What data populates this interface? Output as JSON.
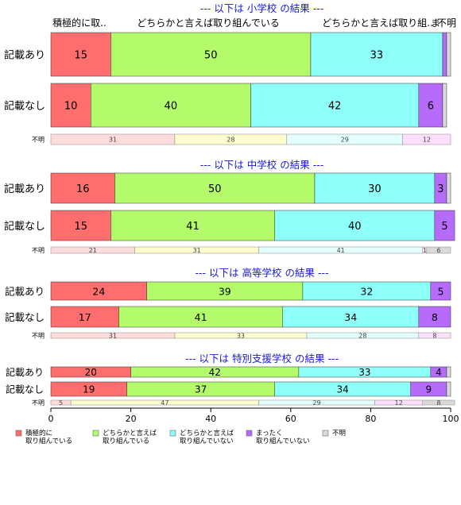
{
  "chart_data": {
    "type": "bar",
    "orientation": "horizontal-stacked-percent",
    "xlim": [
      0,
      100
    ],
    "x_ticks": [
      "0",
      "20",
      "40",
      "60",
      "80",
      "100"
    ],
    "top_category_labels": [
      "積極的に取..",
      "どちらかと言えば取り組んでいる",
      "どちらかと言えば取り組..",
      "ま",
      "不明"
    ],
    "legend": {
      "position": "bottom",
      "entries": [
        {
          "line1": "積極的に",
          "line2": "取り組んでいる",
          "color": "#ff6e6e"
        },
        {
          "line1": "どちらかと言えば",
          "line2": "取り組んでいる",
          "color": "#b4fb6b"
        },
        {
          "line1": "どちらかと言えば",
          "line2": "取り組んでいない",
          "color": "#8ffff9"
        },
        {
          "line1": "まったく",
          "line2": "取り組んでいない",
          "color": "#b66bfb"
        },
        {
          "line1": "不明",
          "line2": "",
          "color": "#d9d9d9"
        }
      ]
    },
    "panels": [
      {
        "title": "--- 以下は 小学校 の結果 ---",
        "rows": [
          {
            "label": "記載あり",
            "values": [
              15,
              50,
              33,
              1,
              1
            ]
          },
          {
            "label": "記載なし",
            "values": [
              10,
              40,
              42,
              6,
              1
            ]
          }
        ],
        "unknown": {
          "label": "不明",
          "values": [
            31,
            28,
            29,
            12
          ]
        }
      },
      {
        "title": "--- 以下は 中学校 の結果 ---",
        "rows": [
          {
            "label": "記載あり",
            "values": [
              16,
              50,
              30,
              3,
              1
            ]
          },
          {
            "label": "記載なし",
            "values": [
              15,
              41,
              40,
              5,
              0
            ]
          }
        ],
        "unknown": {
          "label": "不明",
          "values": [
            21,
            31,
            41,
            1,
            6
          ]
        }
      },
      {
        "title": "--- 以下は 高等学校 の結果 ---",
        "rows": [
          {
            "label": "記載あり",
            "values": [
              24,
              39,
              32,
              5,
              0
            ]
          },
          {
            "label": "記載なし",
            "values": [
              17,
              41,
              34,
              8,
              0
            ]
          }
        ],
        "unknown": {
          "label": "不明",
          "values": [
            31,
            33,
            28,
            8
          ]
        }
      },
      {
        "title": "--- 以下は 特別支援学校 の結果 ---",
        "rows": [
          {
            "label": "記載あり",
            "values": [
              20,
              42,
              33,
              4,
              1
            ]
          },
          {
            "label": "記載なし",
            "values": [
              19,
              37,
              34,
              9,
              1
            ]
          }
        ],
        "unknown": {
          "label": "不明",
          "values": [
            5,
            47,
            29,
            12,
            8
          ]
        }
      }
    ]
  }
}
